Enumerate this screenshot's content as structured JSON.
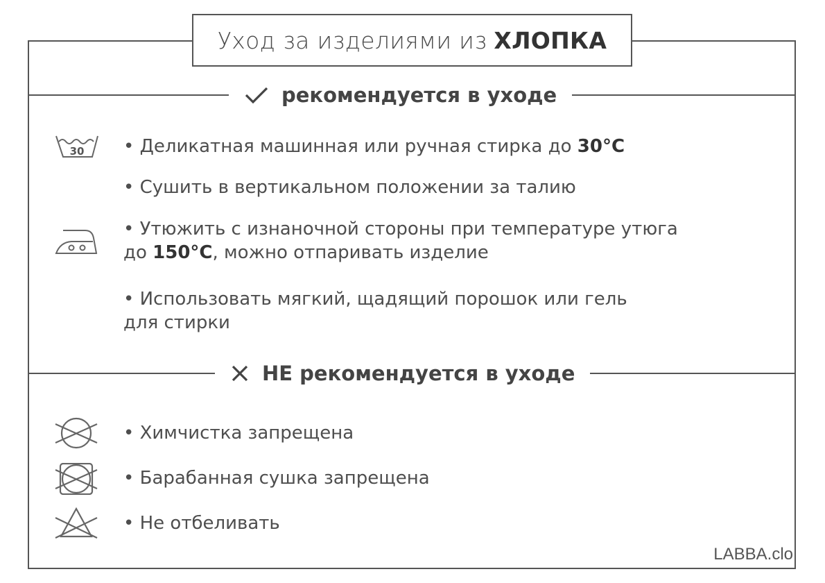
{
  "title": {
    "prefix": "Уход за изделиями из",
    "bold": "ХЛОПКА"
  },
  "recommended": {
    "heading": "рекомендуется в уходе",
    "heading_icon": "check-icon",
    "items": [
      {
        "icon": "wash-30-icon",
        "text": "• Деликатная машинная или ручная стирка до ",
        "bold": "30°C"
      },
      {
        "text": "• Сушить в вертикальном положении за талию"
      },
      {
        "icon": "iron-icon",
        "text": "• Утюжить с изнаночной стороны при температуре утюга",
        "line2_prefix": "до ",
        "line2_bold": "150°C",
        "line2_suffix": ", можно отпаривать изделие"
      },
      {
        "text": "• Использовать мягкий, щадящий порошок или гель",
        "line2": "для стирки"
      }
    ]
  },
  "not_recommended": {
    "heading": "НЕ рекомендуется в уходе",
    "heading_icon": "cross-icon",
    "items": [
      {
        "icon": "no-dry-clean-icon",
        "text": "• Химчистка запрещена"
      },
      {
        "icon": "no-tumble-dry-icon",
        "text": "• Барабанная сушка запрещена"
      },
      {
        "icon": "no-bleach-icon",
        "text": "• Не отбеливать"
      }
    ]
  },
  "brand": "LABBA.clo",
  "colors": {
    "line": "#555555",
    "text": "#4a4a4a"
  }
}
